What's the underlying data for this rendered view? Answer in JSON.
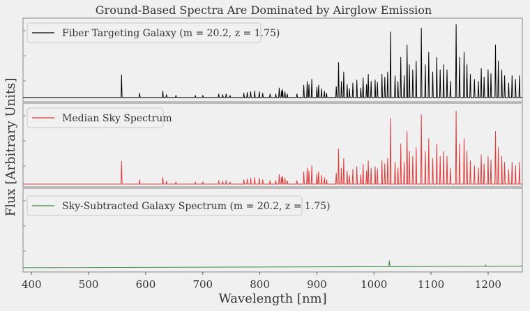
{
  "chart_data": {
    "type": "line",
    "title": "Ground-Based Spectra Are Dominated by Airglow Emission",
    "xlabel": "Wavelength [nm]",
    "ylabel": "Flux [Arbitrary Units]",
    "xlim": [
      385,
      1260
    ],
    "xticks": [
      400,
      500,
      600,
      700,
      800,
      900,
      1000,
      1100,
      1200
    ],
    "grid": false,
    "legend_position": "top-left",
    "colors": {
      "galaxy": "#000000",
      "sky": "#e03b3b",
      "residual": "#3d8a3d",
      "background": "#f0f0f0"
    },
    "panels": [
      {
        "legend": "Fiber Targeting Galaxy (m = 20.2, z = 1.75)",
        "series_key": "galaxy",
        "baseline": 0.02,
        "lines": [
          [
            557.7,
            0.31
          ],
          [
            589.3,
            0.06
          ],
          [
            630.0,
            0.09
          ],
          [
            636.4,
            0.04
          ],
          [
            653,
            0.03
          ],
          [
            687,
            0.03
          ],
          [
            700,
            0.03
          ],
          [
            728,
            0.05
          ],
          [
            735,
            0.04
          ],
          [
            741,
            0.05
          ],
          [
            748,
            0.03
          ],
          [
            772,
            0.06
          ],
          [
            778,
            0.07
          ],
          [
            784,
            0.08
          ],
          [
            791,
            0.09
          ],
          [
            799,
            0.08
          ],
          [
            805,
            0.06
          ],
          [
            818,
            0.05
          ],
          [
            828,
            0.05
          ],
          [
            834,
            0.13
          ],
          [
            838,
            0.09
          ],
          [
            840,
            0.11
          ],
          [
            844,
            0.08
          ],
          [
            848,
            0.05
          ],
          [
            865,
            0.05
          ],
          [
            877,
            0.17
          ],
          [
            883,
            0.22
          ],
          [
            886,
            0.18
          ],
          [
            891,
            0.25
          ],
          [
            900,
            0.14
          ],
          [
            903,
            0.17
          ],
          [
            908,
            0.12
          ],
          [
            913,
            0.09
          ],
          [
            917,
            0.06
          ],
          [
            934,
            0.15
          ],
          [
            938,
            0.48
          ],
          [
            943,
            0.22
          ],
          [
            947,
            0.35
          ],
          [
            953,
            0.18
          ],
          [
            957,
            0.12
          ],
          [
            963,
            0.2
          ],
          [
            970,
            0.24
          ],
          [
            977,
            0.13
          ],
          [
            981,
            0.27
          ],
          [
            987,
            0.18
          ],
          [
            990,
            0.32
          ],
          [
            995,
            0.22
          ],
          [
            1002,
            0.24
          ],
          [
            1006,
            0.21
          ],
          [
            1014,
            0.32
          ],
          [
            1019,
            0.28
          ],
          [
            1024,
            0.35
          ],
          [
            1029,
            0.9
          ],
          [
            1037,
            0.3
          ],
          [
            1042,
            0.22
          ],
          [
            1047,
            0.55
          ],
          [
            1053,
            0.3
          ],
          [
            1058,
            0.72
          ],
          [
            1062,
            0.45
          ],
          [
            1068,
            0.38
          ],
          [
            1074,
            0.5
          ],
          [
            1083,
            0.95
          ],
          [
            1090,
            0.45
          ],
          [
            1096,
            0.62
          ],
          [
            1103,
            0.35
          ],
          [
            1110,
            0.55
          ],
          [
            1116,
            0.38
          ],
          [
            1122,
            0.45
          ],
          [
            1128,
            0.38
          ],
          [
            1134,
            0.22
          ],
          [
            1144,
            1.0
          ],
          [
            1150,
            0.55
          ],
          [
            1158,
            0.62
          ],
          [
            1163,
            0.45
          ],
          [
            1169,
            0.32
          ],
          [
            1176,
            0.25
          ],
          [
            1183,
            0.22
          ],
          [
            1188,
            0.4
          ],
          [
            1193,
            0.28
          ],
          [
            1200,
            0.38
          ],
          [
            1205,
            0.33
          ],
          [
            1213,
            0.72
          ],
          [
            1218,
            0.5
          ],
          [
            1224,
            0.38
          ],
          [
            1229,
            0.3
          ],
          [
            1236,
            0.2
          ],
          [
            1242,
            0.3
          ],
          [
            1248,
            0.25
          ],
          [
            1255,
            0.3
          ]
        ]
      },
      {
        "legend": "Median Sky Spectrum",
        "series_key": "sky",
        "baseline": 0.0,
        "lines": [
          [
            557.7,
            0.31
          ],
          [
            589.3,
            0.06
          ],
          [
            630.0,
            0.09
          ],
          [
            636.4,
            0.04
          ],
          [
            653,
            0.03
          ],
          [
            687,
            0.03
          ],
          [
            700,
            0.03
          ],
          [
            728,
            0.05
          ],
          [
            735,
            0.04
          ],
          [
            741,
            0.05
          ],
          [
            748,
            0.03
          ],
          [
            772,
            0.06
          ],
          [
            778,
            0.07
          ],
          [
            784,
            0.08
          ],
          [
            791,
            0.09
          ],
          [
            799,
            0.08
          ],
          [
            805,
            0.06
          ],
          [
            818,
            0.05
          ],
          [
            828,
            0.05
          ],
          [
            834,
            0.13
          ],
          [
            838,
            0.09
          ],
          [
            840,
            0.11
          ],
          [
            844,
            0.08
          ],
          [
            848,
            0.05
          ],
          [
            865,
            0.05
          ],
          [
            877,
            0.17
          ],
          [
            883,
            0.22
          ],
          [
            886,
            0.18
          ],
          [
            891,
            0.25
          ],
          [
            900,
            0.14
          ],
          [
            903,
            0.17
          ],
          [
            908,
            0.12
          ],
          [
            913,
            0.09
          ],
          [
            917,
            0.06
          ],
          [
            934,
            0.15
          ],
          [
            938,
            0.48
          ],
          [
            943,
            0.22
          ],
          [
            947,
            0.35
          ],
          [
            953,
            0.18
          ],
          [
            957,
            0.12
          ],
          [
            963,
            0.2
          ],
          [
            970,
            0.24
          ],
          [
            977,
            0.13
          ],
          [
            981,
            0.27
          ],
          [
            987,
            0.18
          ],
          [
            990,
            0.32
          ],
          [
            995,
            0.22
          ],
          [
            1002,
            0.24
          ],
          [
            1006,
            0.21
          ],
          [
            1014,
            0.32
          ],
          [
            1019,
            0.28
          ],
          [
            1024,
            0.35
          ],
          [
            1029,
            0.9
          ],
          [
            1037,
            0.3
          ],
          [
            1042,
            0.22
          ],
          [
            1047,
            0.55
          ],
          [
            1053,
            0.3
          ],
          [
            1058,
            0.72
          ],
          [
            1062,
            0.45
          ],
          [
            1068,
            0.38
          ],
          [
            1074,
            0.5
          ],
          [
            1083,
            0.95
          ],
          [
            1090,
            0.45
          ],
          [
            1096,
            0.62
          ],
          [
            1103,
            0.35
          ],
          [
            1110,
            0.55
          ],
          [
            1116,
            0.38
          ],
          [
            1122,
            0.45
          ],
          [
            1128,
            0.38
          ],
          [
            1134,
            0.22
          ],
          [
            1144,
            1.0
          ],
          [
            1150,
            0.55
          ],
          [
            1158,
            0.62
          ],
          [
            1163,
            0.45
          ],
          [
            1169,
            0.32
          ],
          [
            1176,
            0.25
          ],
          [
            1183,
            0.22
          ],
          [
            1188,
            0.4
          ],
          [
            1193,
            0.28
          ],
          [
            1200,
            0.38
          ],
          [
            1205,
            0.33
          ],
          [
            1213,
            0.72
          ],
          [
            1218,
            0.5
          ],
          [
            1224,
            0.38
          ],
          [
            1229,
            0.3
          ],
          [
            1236,
            0.2
          ],
          [
            1242,
            0.3
          ],
          [
            1248,
            0.25
          ],
          [
            1255,
            0.3
          ]
        ]
      },
      {
        "legend": "Sky-Subtracted Galaxy Spectrum (m = 20.2, z = 1.75)",
        "series_key": "residual",
        "continuum": [
          [
            385,
            0.02
          ],
          [
            1260,
            0.04
          ]
        ],
        "lines": [
          [
            1027,
            0.08
          ],
          [
            1196,
            0.02
          ]
        ]
      }
    ]
  }
}
